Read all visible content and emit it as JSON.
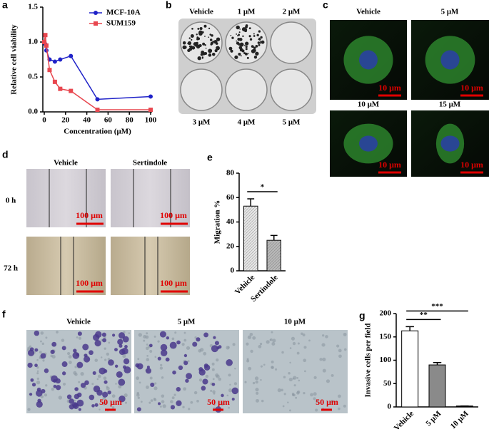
{
  "panels": {
    "labels": [
      "a",
      "b",
      "c",
      "d",
      "e",
      "f",
      "g"
    ],
    "b": {
      "top": [
        "Vehicle",
        "1 μM",
        "2 μM"
      ],
      "bottom": [
        "3 μM",
        "4 μM",
        "5 μM"
      ]
    },
    "c": {
      "labels": [
        "Vehicle",
        "5 μM",
        "10 μM",
        "15 μM"
      ],
      "scale_bars": [
        "10 μm",
        "10 μm",
        "10 μm",
        "10 μm"
      ]
    },
    "d": {
      "columns": [
        "Vehicle",
        "Sertindole"
      ],
      "rows": [
        "0 h",
        "72 h"
      ],
      "scale_bars": [
        "100 μm",
        "100 μm",
        "100 μm",
        "100 μm"
      ]
    },
    "f": {
      "labels": [
        "Vehicle",
        "5 μM",
        "10 μM"
      ],
      "scale_bars": [
        "50 μm",
        "50 μm",
        "50 μm"
      ]
    }
  },
  "chart_data": [
    {
      "type": "line",
      "y_label": "Relative cell viability",
      "x_label": "Concentration (μM)",
      "x": [
        0,
        1,
        2,
        5,
        10,
        15,
        25,
        50,
        100
      ],
      "series": [
        {
          "name": "MCF-10A",
          "color": "#1f22c8",
          "marker": "circle",
          "values": [
            1.0,
            0.97,
            0.88,
            0.75,
            0.72,
            0.75,
            0.8,
            0.18,
            0.22
          ]
        },
        {
          "name": "SUM159",
          "color": "#e8474f",
          "marker": "square",
          "values": [
            1.0,
            1.1,
            0.95,
            0.6,
            0.43,
            0.33,
            0.3,
            0.03,
            0.03
          ]
        }
      ],
      "xlim": [
        0,
        100
      ],
      "xticks": [
        0,
        20,
        40,
        60,
        80,
        100
      ],
      "ylim": [
        0,
        1.5
      ],
      "yticks": [
        {
          "value": 0,
          "label": "0.0"
        },
        {
          "value": 0.5,
          "label": "0.5"
        },
        {
          "value": 1,
          "label": "1.0"
        },
        {
          "value": 1.5,
          "label": "1.5"
        }
      ],
      "legend": "upper right"
    },
    {
      "type": "bar",
      "y_label": "Migration %",
      "categories": [
        "Vehicle",
        "Sertindole"
      ],
      "values": [
        53,
        25
      ],
      "errors": [
        6,
        4
      ],
      "colors": [
        "#e6e6e6",
        "#b8b8b8"
      ],
      "ylim": [
        0,
        80
      ],
      "yticks": [
        0,
        20,
        40,
        60,
        80
      ],
      "annotations": [
        "*"
      ]
    },
    {
      "type": "bar",
      "y_label": "Invasive cells per field",
      "categories": [
        "Vehicle",
        "5 μM",
        "10 μM"
      ],
      "values": [
        163,
        90,
        2
      ],
      "errors": [
        9,
        5,
        0
      ],
      "colors": [
        "#ffffff",
        "#8a8a8a",
        "#000000"
      ],
      "ylim": [
        0,
        200
      ],
      "yticks": [
        0,
        50,
        100,
        150,
        200
      ],
      "annotations": [
        "**",
        "***"
      ]
    }
  ]
}
